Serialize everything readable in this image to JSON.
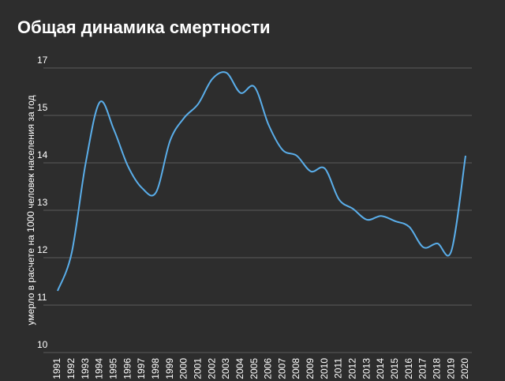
{
  "chart_data": {
    "type": "line",
    "title": "Общая динамика смертности",
    "ylabel": "умерло в расчете на 1000 человек населения за год",
    "x": [
      "1991",
      "1992",
      "1993",
      "1994",
      "1995",
      "1996",
      "1997",
      "1998",
      "1999",
      "2000",
      "2001",
      "2002",
      "2003",
      "2004",
      "2005",
      "2006",
      "2007",
      "2008",
      "2009",
      "2010",
      "2011",
      "2012",
      "2013",
      "2014",
      "2015",
      "2016",
      "2017",
      "2018",
      "2019",
      "2020"
    ],
    "series": [
      {
        "name": null,
        "color": "#5aaeea",
        "values": [
          11.3,
          12.1,
          14.0,
          15.56,
          14.7,
          13.93,
          13.47,
          13.38,
          14.47,
          14.95,
          15.49,
          16.54,
          16.8,
          15.95,
          16.2,
          14.8,
          14.27,
          14.15,
          13.82,
          13.88,
          13.23,
          13.03,
          12.8,
          12.88,
          12.77,
          12.65,
          12.22,
          12.3,
          12.15,
          14.15
        ]
      }
    ],
    "ylim": [
      10,
      17
    ],
    "yticks": [
      10,
      11,
      12,
      13,
      14,
      15,
      17
    ],
    "grid": true
  }
}
